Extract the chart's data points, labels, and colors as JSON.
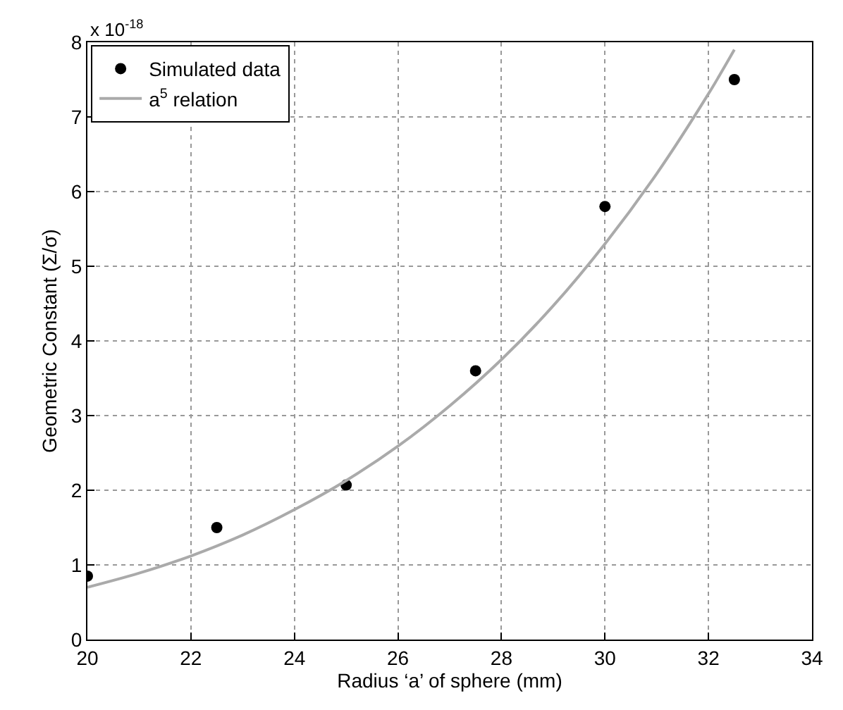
{
  "chart_data": {
    "type": "scatter",
    "xlabel": "Radius ‘a’ of sphere (mm)",
    "ylabel": "Geometric Constant (Σ/σ)",
    "annotations": [
      "x 10$^{-18}$"
    ],
    "xlim": [
      20,
      34
    ],
    "xticks": [
      20,
      22,
      24,
      26,
      28,
      30,
      32,
      34
    ],
    "ylim": [
      0,
      8
    ],
    "yticks": [
      0,
      1,
      2,
      3,
      4,
      5,
      6,
      7,
      8
    ],
    "grid": true,
    "legend": "top left",
    "series": [
      {
        "name": "Simulated data",
        "marker": "circle",
        "color": "#000000",
        "x": [
          20,
          22.5,
          25,
          27.5,
          30,
          32.5
        ],
        "values": [
          0.85,
          1.5,
          2.07,
          3.6,
          5.8,
          7.5
        ]
      },
      {
        "name": "a$^{5}$ relation",
        "type": "line",
        "marker": "none",
        "color": "#aaaaaa",
        "x": [
          20,
          21,
          22,
          23,
          24,
          25,
          26,
          27,
          28,
          29,
          30,
          31,
          32,
          32.5
        ],
        "values": [
          0.7,
          0.89,
          1.12,
          1.4,
          1.74,
          2.13,
          2.59,
          3.13,
          3.75,
          4.47,
          5.3,
          6.24,
          7.31,
          7.9
        ]
      }
    ]
  }
}
